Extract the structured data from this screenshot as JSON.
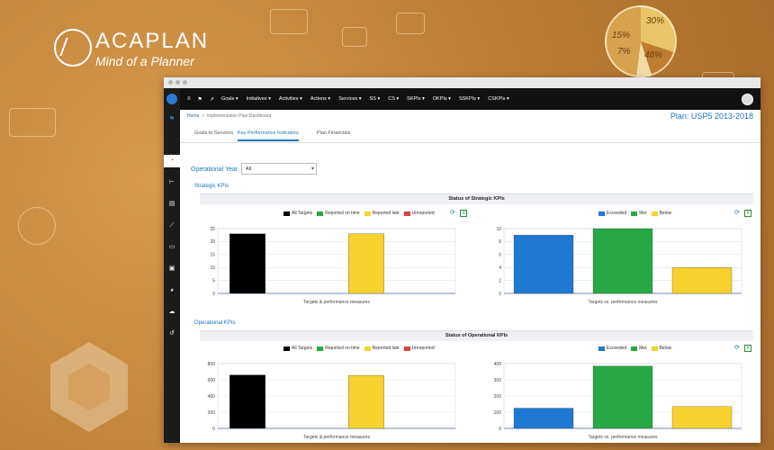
{
  "brand": {
    "name": "ACAPLAN",
    "tagline": "Mind of a Planner"
  },
  "background_pie": {
    "labels": [
      "30%",
      "15%",
      "7%",
      "48%"
    ]
  },
  "nav": {
    "items": [
      "Goals",
      "Initiatives",
      "Activities",
      "Actions",
      "Services",
      "SS",
      "CS",
      "SKPIs",
      "OKPIs",
      "SSKPIs",
      "CSKPIs"
    ]
  },
  "breadcrumb": {
    "home": "Home",
    "separator": ">",
    "current": "Implementation Plan Dashboard"
  },
  "plan_title": "Plan: USP5 2013-2018",
  "tabs": [
    {
      "label": "Goals to Services",
      "active": false
    },
    {
      "label": "Key Performance Indicators",
      "active": true
    },
    {
      "label": "Plan Financials",
      "active": false
    }
  ],
  "filter": {
    "label": "Operational Year",
    "value": "All"
  },
  "strategic": {
    "section_title": "Strategic KPIs",
    "panel_title": "Status of Strategic KPIs",
    "left": {
      "legend": [
        {
          "name": "All Targets",
          "color": "#000000"
        },
        {
          "name": "Reported on time",
          "color": "#28a745"
        },
        {
          "name": "Reported late",
          "color": "#f7d12e"
        },
        {
          "name": "Unreported",
          "color": "#e04040"
        }
      ],
      "xlabel": "Targets & performance measures"
    },
    "right": {
      "legend": [
        {
          "name": "Exceeded",
          "color": "#1f78d1"
        },
        {
          "name": "Met",
          "color": "#28a745"
        },
        {
          "name": "Below",
          "color": "#f7d12e"
        }
      ],
      "xlabel": "Targets vs. performance measures"
    }
  },
  "operational": {
    "section_title": "Operational KPIs",
    "panel_title": "Status of Operational KPIs",
    "left": {
      "legend": [
        {
          "name": "All Targets",
          "color": "#000000"
        },
        {
          "name": "Reported on time",
          "color": "#28a745"
        },
        {
          "name": "Reported late",
          "color": "#f7d12e"
        },
        {
          "name": "Unreported",
          "color": "#e04040"
        }
      ],
      "xlabel": "Targets & performance measures"
    },
    "right": {
      "legend": [
        {
          "name": "Exceeded",
          "color": "#1f78d1"
        },
        {
          "name": "Met",
          "color": "#28a745"
        },
        {
          "name": "Below",
          "color": "#f7d12e"
        }
      ],
      "xlabel": "Targets vs. performance measures"
    }
  },
  "chart_data": [
    {
      "id": "strategic-reporting",
      "type": "bar",
      "categories": [
        "All Targets",
        "Reported on time",
        "Reported late",
        "Unreported"
      ],
      "values": [
        23,
        0,
        23,
        0
      ],
      "colors": [
        "#000000",
        "#28a745",
        "#f7d12e",
        "#e04040"
      ],
      "yticks": [
        0,
        5,
        10,
        15,
        20,
        25
      ],
      "ylim": [
        0,
        25
      ],
      "xlabel": "Targets & performance measures"
    },
    {
      "id": "strategic-status",
      "type": "bar",
      "categories": [
        "Exceeded",
        "Met",
        "Below"
      ],
      "values": [
        9,
        10,
        4
      ],
      "colors": [
        "#1f78d1",
        "#28a745",
        "#f7d12e"
      ],
      "yticks": [
        0,
        2,
        4,
        6,
        8,
        10
      ],
      "ylim": [
        0,
        10
      ],
      "xlabel": "Targets vs. performance measures"
    },
    {
      "id": "operational-reporting",
      "type": "bar",
      "categories": [
        "All Targets",
        "Reported on time",
        "Reported late",
        "Unreported"
      ],
      "values": [
        660,
        0,
        655,
        0
      ],
      "colors": [
        "#000000",
        "#28a745",
        "#f7d12e",
        "#e04040"
      ],
      "yticks": [
        0,
        200,
        400,
        600,
        800
      ],
      "ylim": [
        0,
        800
      ],
      "xlabel": "Targets & performance measures"
    },
    {
      "id": "operational-status",
      "type": "bar",
      "categories": [
        "Exceeded",
        "Met",
        "Below"
      ],
      "values": [
        125,
        385,
        135
      ],
      "colors": [
        "#1f78d1",
        "#28a745",
        "#f7d12e"
      ],
      "yticks": [
        0,
        100,
        200,
        300,
        400
      ],
      "ylim": [
        0,
        400
      ],
      "xlabel": "Targets vs. performance measures"
    }
  ]
}
